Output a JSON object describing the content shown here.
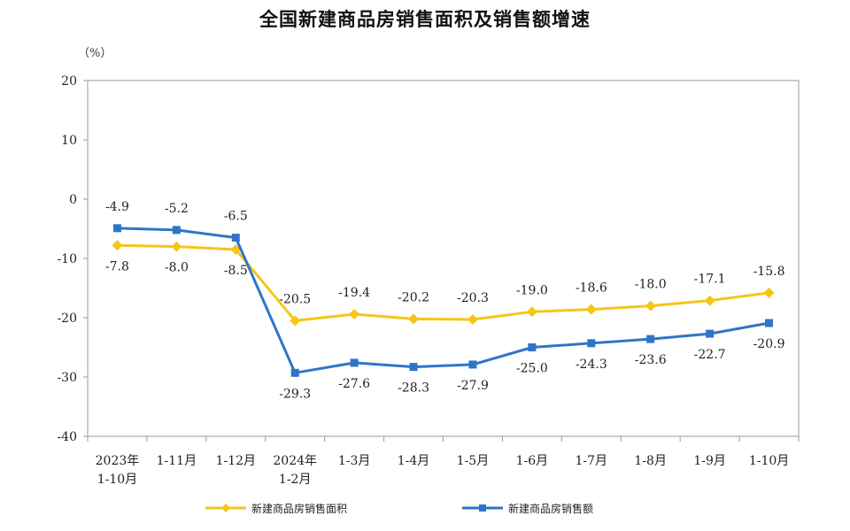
{
  "chart_data": {
    "type": "line",
    "title": "全国新建商品房销售面积及销售额增速",
    "unit": "（%）",
    "ylim": [
      -40,
      20
    ],
    "yticks": [
      "20",
      "10",
      "0",
      "-10",
      "-20",
      "-30",
      "-40"
    ],
    "categories": [
      [
        "2023年",
        "1-10月"
      ],
      [
        "1-11月"
      ],
      [
        "1-12月"
      ],
      [
        "2024年",
        "1-2月"
      ],
      [
        "1-3月"
      ],
      [
        "1-4月"
      ],
      [
        "1-5月"
      ],
      [
        "1-6月"
      ],
      [
        "1-7月"
      ],
      [
        "1-8月"
      ],
      [
        "1-9月"
      ],
      [
        "1-10月"
      ]
    ],
    "series": [
      {
        "name": "新建商品房销售面积",
        "color": "#F5C518",
        "marker": "diamond",
        "values": [
          -7.8,
          -8.0,
          -8.5,
          -20.5,
          -19.4,
          -20.2,
          -20.3,
          -19.0,
          -18.6,
          -18.0,
          -17.1,
          -15.8
        ],
        "labels": [
          "-7.8",
          "-8.0",
          "-8.5",
          "-20.5",
          "-19.4",
          "-20.2",
          "-20.3",
          "-19.0",
          "-18.6",
          "-18.0",
          "-17.1",
          "-15.8"
        ]
      },
      {
        "name": "新建商品房销售额",
        "color": "#2E75C8",
        "marker": "square",
        "values": [
          -4.9,
          -5.2,
          -6.5,
          -29.3,
          -27.6,
          -28.3,
          -27.9,
          -25.0,
          -24.3,
          -23.6,
          -22.7,
          -20.9
        ],
        "labels": [
          "-4.9",
          "-5.2",
          "-6.5",
          "-29.3",
          "-27.6",
          "-28.3",
          "-27.9",
          "-25.0",
          "-24.3",
          "-23.6",
          "-22.7",
          "-20.9"
        ]
      }
    ],
    "grid": false,
    "legend_position": "bottom"
  }
}
